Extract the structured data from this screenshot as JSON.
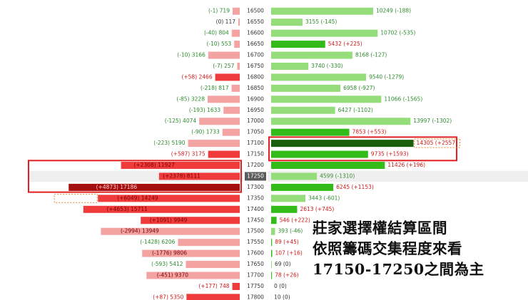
{
  "chart_data": {
    "type": "bar",
    "strikes": [
      "16500",
      "16550",
      "16600",
      "16650",
      "16700",
      "16750",
      "16800",
      "16850",
      "16900",
      "16950",
      "17000",
      "17050",
      "17100",
      "17150",
      "17200",
      "17250",
      "17300",
      "17350",
      "17400",
      "17450",
      "17500",
      "17550",
      "17600",
      "17650",
      "17700",
      "17750",
      "17800"
    ],
    "atm_strike": "17250",
    "put_oi": {
      "values": [
        719,
        117,
        804,
        553,
        3166,
        257,
        2466,
        817,
        3228,
        1633,
        4074,
        1733,
        5190,
        3175,
        11927,
        8111,
        17186,
        14249,
        15711,
        9949,
        13949,
        6206,
        9806,
        5412,
        9370,
        748,
        5350
      ],
      "changes": [
        "-1",
        "0",
        "-40",
        "-10",
        "-10",
        "-7",
        "+58",
        "-218",
        "-85",
        "-193",
        "-125",
        "-90",
        "-223",
        "+587",
        "+2308",
        "+2378",
        "+4873",
        "+6049",
        "+4653",
        "+1091",
        "-2994",
        "-1428",
        "-1776",
        "-593",
        "-451",
        "+177",
        "+87"
      ],
      "labels": [
        "(-1) 719",
        "(0) 117",
        "(-40) 804",
        "(-10) 553",
        "(-10) 3166",
        "(-7) 257",
        "(+58) 2466",
        "(-218) 817",
        "(-85) 3228",
        "(-193) 1633",
        "(-125) 4074",
        "(-90) 1733",
        "(-223) 5190",
        "(+587) 3175",
        "(+2308) 11927",
        "(+2378) 8111",
        "(+4873) 17186",
        "(+6049) 14249",
        "(+4653) 15711",
        "(+1091) 9949",
        "(-2994) 13949",
        "(-1428) 6206",
        "(-1776) 9806",
        "(-593) 5412",
        "(-451) 9370",
        "(+177) 748",
        "(+87) 5350"
      ]
    },
    "call_oi": {
      "values": [
        10249,
        3155,
        10702,
        5432,
        8168,
        3740,
        9540,
        6958,
        11066,
        6427,
        13997,
        7853,
        14305,
        9735,
        11426,
        4599,
        6245,
        3443,
        2613,
        546,
        393,
        89,
        107,
        69,
        78,
        0,
        10
      ],
      "changes": [
        "-188",
        "-145",
        "-535",
        "+225",
        "-127",
        "-330",
        "-1279",
        "-927",
        "-1565",
        "-1102",
        "-1302",
        "+553",
        "+2557",
        "+1593",
        "+196",
        "-1310",
        "+1153",
        "-601",
        "+745",
        "+222",
        "-46",
        "+45",
        "+16",
        "0",
        "+26",
        "0",
        "0"
      ],
      "labels": [
        "10249 (-188)",
        "3155 (-145)",
        "10702 (-535)",
        "5432 (+225)",
        "8168 (-127)",
        "3740 (-330)",
        "9540 (-1279)",
        "6958 (-927)",
        "11066 (-1565)",
        "6427 (-1102)",
        "13997 (-1302)",
        "7853 (+553)",
        "14305 (+2557)",
        "9735 (+1593)",
        "11426 (+196)",
        "4599 (-1310)",
        "6245 (+1153)",
        "3443 (-601)",
        "2613 (+745)",
        "546 (+222)",
        "393 (-46)",
        "89 (+45)",
        "107 (+16)",
        "69 (0)",
        "78 (+26)",
        "0 (0)",
        "10 (0)"
      ]
    },
    "highlighted_put_strikes": [
      "17200",
      "17250",
      "17300"
    ],
    "highlighted_call_strikes": [
      "17100",
      "17150"
    ],
    "max_change_put": "17350",
    "max_change_call": "17100",
    "colors": {
      "put_strong": "#ef3b3b",
      "put_light": "#f4a3a3",
      "put_dark": "#a50f0f",
      "call_strong": "#33bb1a",
      "call_light": "#95dc7a",
      "call_dark": "#1a5e0c",
      "negative_text": "#2e8b2e",
      "positive_text": "#d01818",
      "box": "#e02020"
    }
  },
  "caption": {
    "line1": "莊家選擇權結算區間",
    "line2": "依照籌碼交集程度來看",
    "line3": "17150-17250之間為主"
  }
}
